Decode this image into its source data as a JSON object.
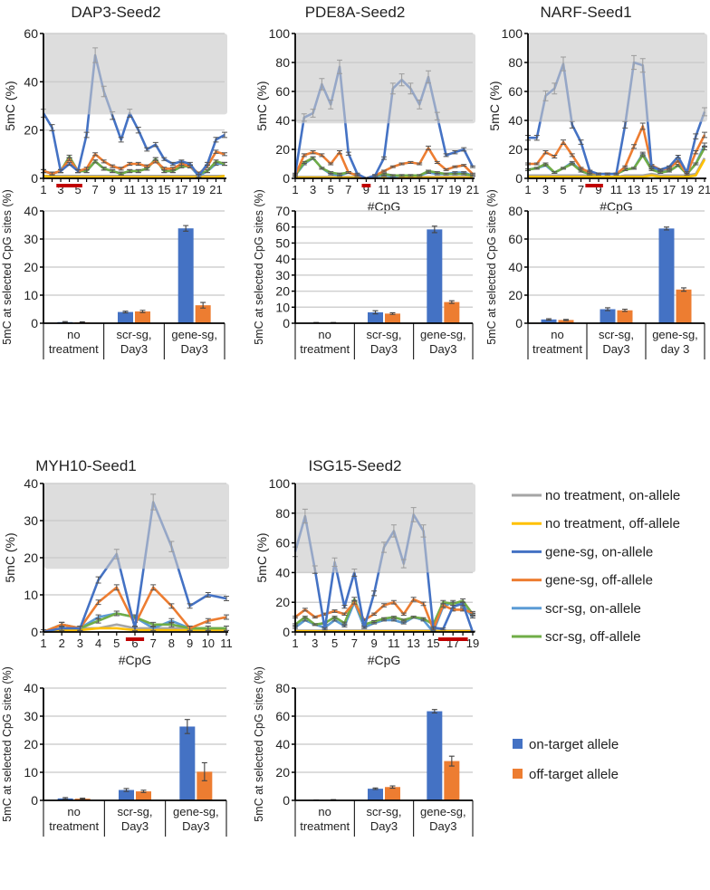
{
  "colors": {
    "no_on": "#a5a5a5",
    "no_off": "#ffc000",
    "gene_on": "#4472c4",
    "gene_off": "#ed7d31",
    "scr_on": "#5b9bd5",
    "scr_off": "#70ad47",
    "target_bar": "#c00000",
    "shade": "#c8c8c8"
  },
  "line_legend": [
    {
      "key": "no_on",
      "label": "no treatment, on-allele"
    },
    {
      "key": "no_off",
      "label": "no treatment, off-allele"
    },
    {
      "key": "gene_on",
      "label": "gene-sg, on-allele"
    },
    {
      "key": "gene_off",
      "label": "gene-sg, off-allele"
    },
    {
      "key": "scr_on",
      "label": "scr-sg, on-allele"
    },
    {
      "key": "scr_off",
      "label": "scr-sg, off-allele"
    }
  ],
  "bar_legend": [
    {
      "key": "gene_on",
      "label": "on-target allele"
    },
    {
      "key": "gene_off",
      "label": "off-target allele"
    }
  ],
  "chart_data": [
    {
      "id": "dap3-line",
      "type": "line",
      "title": "DAP3-Seed2",
      "xlabel": "",
      "ylabel": "5mC (%)",
      "ylim": [
        0,
        60
      ],
      "yticks": [
        0,
        20,
        40,
        60
      ],
      "xticks": [
        1,
        3,
        5,
        7,
        9,
        11,
        13,
        15,
        17,
        19,
        21
      ],
      "shaded_above": 26.5,
      "target_cpg_range": [
        3,
        5
      ],
      "x": [
        1,
        2,
        3,
        4,
        5,
        6,
        7,
        8,
        9,
        10,
        11,
        12,
        13,
        14,
        15,
        16,
        17,
        18,
        19,
        20,
        21,
        22
      ],
      "series": {
        "gene_on": [
          27,
          21,
          3,
          6,
          3,
          18,
          51,
          36,
          26,
          16,
          27,
          20,
          12,
          14,
          8,
          6,
          7,
          6,
          1,
          6,
          16,
          18
        ],
        "gene_off": [
          3,
          2,
          3,
          8,
          3,
          4,
          10,
          7,
          5,
          4,
          6,
          6,
          5,
          7,
          4,
          4,
          6,
          5,
          2,
          5,
          11,
          10
        ],
        "scr_on": [
          3,
          2,
          3,
          8,
          3,
          3,
          7,
          4,
          3,
          2,
          3,
          3,
          4,
          8,
          3,
          3,
          5,
          5,
          1,
          3,
          6,
          6
        ],
        "scr_off": [
          3,
          2,
          3,
          9,
          3,
          3,
          7,
          4,
          3,
          2,
          3,
          3,
          4,
          8,
          3,
          3,
          5,
          5,
          2,
          3,
          7,
          6
        ],
        "no_on": [
          1,
          1,
          1,
          1,
          1,
          1,
          1,
          1,
          1,
          1,
          1,
          1,
          1,
          1,
          1,
          1,
          1,
          1,
          1,
          1,
          1,
          1
        ],
        "no_off": [
          1,
          0.5,
          0.5,
          0.5,
          0.5,
          0.5,
          0.5,
          0.5,
          0.5,
          0.5,
          0.5,
          0.5,
          0.5,
          0.5,
          0.5,
          0.5,
          0.5,
          0.5,
          0.5,
          0.5,
          0.5,
          1
        ]
      }
    },
    {
      "id": "pde8a-line",
      "type": "line",
      "title": "PDE8A-Seed2",
      "xlabel": "#CpG",
      "ylabel": "5mC (%)",
      "ylim": [
        0,
        100
      ],
      "yticks": [
        0,
        20,
        40,
        60,
        80,
        100
      ],
      "xticks": [
        1,
        3,
        5,
        7,
        9,
        11,
        13,
        15,
        17,
        19,
        21
      ],
      "shaded_above": 38,
      "target_cpg_range": [
        9,
        9
      ],
      "x": [
        1,
        2,
        3,
        4,
        5,
        6,
        7,
        8,
        9,
        10,
        11,
        12,
        13,
        14,
        15,
        16,
        17,
        18,
        19,
        20,
        21
      ],
      "series": {
        "gene_on": [
          3,
          42,
          45,
          65,
          51,
          77,
          17,
          3,
          0,
          2,
          14,
          62,
          68,
          62,
          51,
          70,
          43,
          16,
          18,
          20,
          8
        ],
        "gene_off": [
          2,
          16,
          18,
          16,
          10,
          18,
          4,
          2,
          0,
          2,
          5,
          8,
          10,
          11,
          10,
          21,
          11,
          6,
          8,
          9,
          3
        ],
        "scr_on": [
          2,
          10,
          14,
          7,
          3,
          2,
          4,
          2,
          0,
          1,
          2,
          1,
          2,
          2,
          2,
          4,
          3,
          3,
          4,
          4,
          2
        ],
        "scr_off": [
          2,
          11,
          14,
          7,
          4,
          3,
          4,
          2,
          0,
          2,
          3,
          2,
          2,
          2,
          2,
          5,
          4,
          3,
          3,
          3,
          2
        ],
        "no_on": [
          1,
          1,
          1,
          1,
          1,
          1,
          1,
          1,
          0,
          1,
          1,
          1,
          1,
          1,
          1,
          1,
          1,
          1,
          1,
          1,
          1
        ],
        "no_off": [
          0.5,
          0.5,
          0.5,
          0.5,
          0.5,
          0.5,
          0.5,
          0.5,
          0,
          0.5,
          0.5,
          0.5,
          0.5,
          0.5,
          0.5,
          0.5,
          0.5,
          0.5,
          0.5,
          0.5,
          0.5
        ]
      }
    },
    {
      "id": "narf-line",
      "type": "line",
      "title": "NARF-Seed1",
      "xlabel": "#CpG",
      "ylabel": "5mC (%)",
      "ylim": [
        0,
        100
      ],
      "yticks": [
        0,
        20,
        40,
        60,
        80,
        100
      ],
      "xticks": [
        1,
        3,
        5,
        7,
        9,
        11,
        13,
        15,
        17,
        19,
        21
      ],
      "shaded_above": 39,
      "target_cpg_range": [
        8,
        9
      ],
      "x": [
        1,
        2,
        3,
        4,
        5,
        6,
        7,
        8,
        9,
        10,
        11,
        12,
        13,
        14,
        15,
        16,
        17,
        18,
        19,
        20,
        21
      ],
      "series": {
        "gene_on": [
          28,
          28,
          57,
          62,
          79,
          37,
          25,
          5,
          3,
          3,
          3,
          37,
          80,
          78,
          8,
          6,
          8,
          15,
          4,
          29,
          46
        ],
        "gene_off": [
          10,
          10,
          18,
          15,
          25,
          16,
          7,
          4,
          3,
          3,
          3,
          8,
          22,
          36,
          9,
          6,
          7,
          12,
          3,
          18,
          30
        ],
        "scr_on": [
          6,
          7,
          9,
          4,
          7,
          11,
          5,
          3,
          3,
          3,
          3,
          6,
          7,
          17,
          7,
          5,
          5,
          9,
          3,
          10,
          23
        ],
        "scr_off": [
          6,
          7,
          10,
          4,
          7,
          10,
          5,
          3,
          3,
          3,
          3,
          6,
          7,
          16,
          6,
          4,
          5,
          9,
          3,
          10,
          21
        ],
        "no_on": [
          2,
          2,
          2,
          2,
          2,
          2,
          2,
          2,
          1,
          1,
          1,
          2,
          2,
          2,
          3,
          2,
          2,
          2,
          2,
          3,
          14
        ],
        "no_off": [
          1,
          1,
          1,
          1,
          1,
          1,
          1,
          1,
          1,
          1,
          1,
          1,
          1,
          1,
          2,
          1,
          1,
          1,
          1,
          2,
          13
        ]
      }
    },
    {
      "id": "myh10-line",
      "type": "line",
      "title": "MYH10-Seed1",
      "xlabel": "#CpG",
      "ylabel": "5mC (%)",
      "ylim": [
        0,
        40
      ],
      "yticks": [
        0,
        10,
        20,
        30,
        40
      ],
      "xticks": [
        1,
        2,
        3,
        4,
        5,
        6,
        7,
        8,
        9,
        10,
        11
      ],
      "shaded_above": 17,
      "target_cpg_range": [
        6,
        6
      ],
      "x": [
        1,
        2,
        3,
        4,
        5,
        6,
        7,
        8,
        9,
        10,
        11
      ],
      "series": {
        "gene_on": [
          0,
          1,
          1,
          14,
          21,
          1,
          35,
          23,
          7,
          10,
          9
        ],
        "gene_off": [
          0,
          2,
          1,
          8,
          12,
          2,
          12,
          7,
          1,
          3,
          4
        ],
        "scr_on": [
          0,
          2,
          1,
          4,
          5,
          4,
          1,
          3,
          1,
          1,
          1
        ],
        "scr_off": [
          0,
          2,
          1,
          3,
          5,
          4,
          2,
          2,
          1,
          1,
          1
        ],
        "no_on": [
          0,
          1,
          1,
          1,
          2,
          1,
          1,
          1,
          1,
          0.5,
          0.5
        ],
        "no_off": [
          0,
          0.5,
          0.5,
          1,
          1,
          0.5,
          0.5,
          0.5,
          0.5,
          0.5,
          0.5
        ]
      }
    },
    {
      "id": "isg15-line",
      "type": "line",
      "title": "ISG15-Seed2",
      "xlabel": "#CpG",
      "ylabel": "5mC (%)",
      "ylim": [
        0,
        100
      ],
      "yticks": [
        0,
        20,
        40,
        60,
        80,
        100
      ],
      "xticks": [
        1,
        3,
        5,
        7,
        9,
        11,
        13,
        15,
        17,
        19
      ],
      "shaded_above": 40,
      "target_cpg_range": [
        16,
        18
      ],
      "x": [
        1,
        2,
        3,
        4,
        5,
        6,
        7,
        8,
        9,
        10,
        11,
        12,
        13,
        14,
        15,
        16,
        17,
        18,
        19
      ],
      "series": {
        "gene_on": [
          54,
          78,
          42,
          2,
          47,
          17,
          40,
          3,
          26,
          57,
          68,
          46,
          79,
          68,
          3,
          2,
          17,
          19,
          0
        ],
        "gene_off": [
          10,
          15,
          10,
          12,
          14,
          12,
          20,
          8,
          12,
          18,
          20,
          12,
          22,
          19,
          2,
          18,
          15,
          15,
          13
        ],
        "scr_on": [
          3,
          8,
          5,
          3,
          8,
          4,
          20,
          3,
          6,
          8,
          8,
          6,
          10,
          8,
          0,
          17,
          20,
          18,
          10
        ],
        "scr_off": [
          5,
          10,
          5,
          6,
          10,
          6,
          22,
          5,
          7,
          9,
          10,
          8,
          10,
          9,
          5,
          20,
          19,
          21,
          12
        ],
        "no_on": [
          1,
          1,
          1,
          1,
          1,
          1,
          1,
          1,
          1,
          1,
          1,
          1,
          1,
          1,
          1,
          1,
          1,
          1,
          1
        ],
        "no_off": [
          0.5,
          0.5,
          0.5,
          0.5,
          0.5,
          0.5,
          0.5,
          0.5,
          0.5,
          0.5,
          0.5,
          0.5,
          0.5,
          0.5,
          0.5,
          0.5,
          0.5,
          0.5,
          0.5
        ]
      }
    },
    {
      "id": "dap3-bar",
      "type": "bar",
      "ylabel": "5mC at selected CpG sites (%)",
      "ylim": [
        0,
        40
      ],
      "yticks": [
        0,
        10,
        20,
        30,
        40
      ],
      "categories": [
        [
          "no",
          "treatment"
        ],
        [
          "scr-sg,",
          "Day3"
        ],
        [
          "gene-sg,",
          "Day3"
        ]
      ],
      "series": [
        {
          "key": "gene_on",
          "values": [
            0.4,
            4.0,
            33.8
          ],
          "errors": [
            0.2,
            0.3,
            1.0
          ]
        },
        {
          "key": "gene_off",
          "values": [
            0.3,
            4.2,
            6.4
          ],
          "errors": [
            0.2,
            0.4,
            1.0
          ]
        }
      ]
    },
    {
      "id": "pde8a-bar",
      "type": "bar",
      "ylabel": "5mC at selected CpG sites (%)",
      "ylim": [
        0,
        70
      ],
      "yticks": [
        0,
        10,
        20,
        30,
        40,
        50,
        60,
        70
      ],
      "categories": [
        [
          "no",
          "treatment"
        ],
        [
          "scr-sg,",
          "Day3"
        ],
        [
          "gene-sg,",
          "Day3"
        ]
      ],
      "series": [
        {
          "key": "gene_on",
          "values": [
            0.3,
            6.8,
            58.5
          ],
          "errors": [
            0.2,
            1.0,
            2.0
          ]
        },
        {
          "key": "gene_off",
          "values": [
            0.3,
            6.0,
            13.2
          ],
          "errors": [
            0.2,
            0.5,
            0.8
          ]
        }
      ]
    },
    {
      "id": "narf-bar",
      "type": "bar",
      "ylabel": "5mC at selected CpG sites (%)",
      "ylim": [
        0,
        80
      ],
      "yticks": [
        0,
        20,
        40,
        60,
        80
      ],
      "categories": [
        [
          "no",
          "treatment"
        ],
        [
          "scr-sg,",
          "Day3"
        ],
        [
          "gene-sg,",
          "day 3"
        ]
      ],
      "series": [
        {
          "key": "gene_on",
          "values": [
            2.7,
            10.0,
            67.5
          ],
          "errors": [
            0.5,
            1.0,
            1.0
          ]
        },
        {
          "key": "gene_off",
          "values": [
            2.3,
            9.2,
            24.0
          ],
          "errors": [
            0.4,
            0.8,
            1.2
          ]
        }
      ]
    },
    {
      "id": "myh10-bar",
      "type": "bar",
      "ylabel": "5mC at selected CpG sites (%)",
      "ylim": [
        0,
        40
      ],
      "yticks": [
        0,
        10,
        20,
        30,
        40
      ],
      "categories": [
        [
          "no",
          "treatment"
        ],
        [
          "scr-sg,",
          "Day3"
        ],
        [
          "gene-sg,",
          "Day3"
        ]
      ],
      "series": [
        {
          "key": "gene_on",
          "values": [
            0.7,
            3.7,
            26.3
          ],
          "errors": [
            0.3,
            0.5,
            2.5
          ]
        },
        {
          "key": "gene_off",
          "values": [
            0.6,
            3.2,
            10.2
          ],
          "errors": [
            0.2,
            0.4,
            3.2
          ]
        }
      ]
    },
    {
      "id": "isg15-bar",
      "type": "bar",
      "ylabel": "5mC at selected CpG sites (%)",
      "ylim": [
        0,
        80
      ],
      "yticks": [
        0,
        20,
        40,
        60,
        80
      ],
      "categories": [
        [
          "no",
          "treatment"
        ],
        [
          "scr-sg,",
          "Day3"
        ],
        [
          "gene-sg,",
          "Day3"
        ]
      ],
      "series": [
        {
          "key": "gene_on",
          "values": [
            0.2,
            8.3,
            63.5
          ],
          "errors": [
            0.1,
            0.5,
            1.2
          ]
        },
        {
          "key": "gene_off",
          "values": [
            0.3,
            9.5,
            28.0
          ],
          "errors": [
            0.2,
            0.8,
            3.5
          ]
        }
      ]
    }
  ]
}
